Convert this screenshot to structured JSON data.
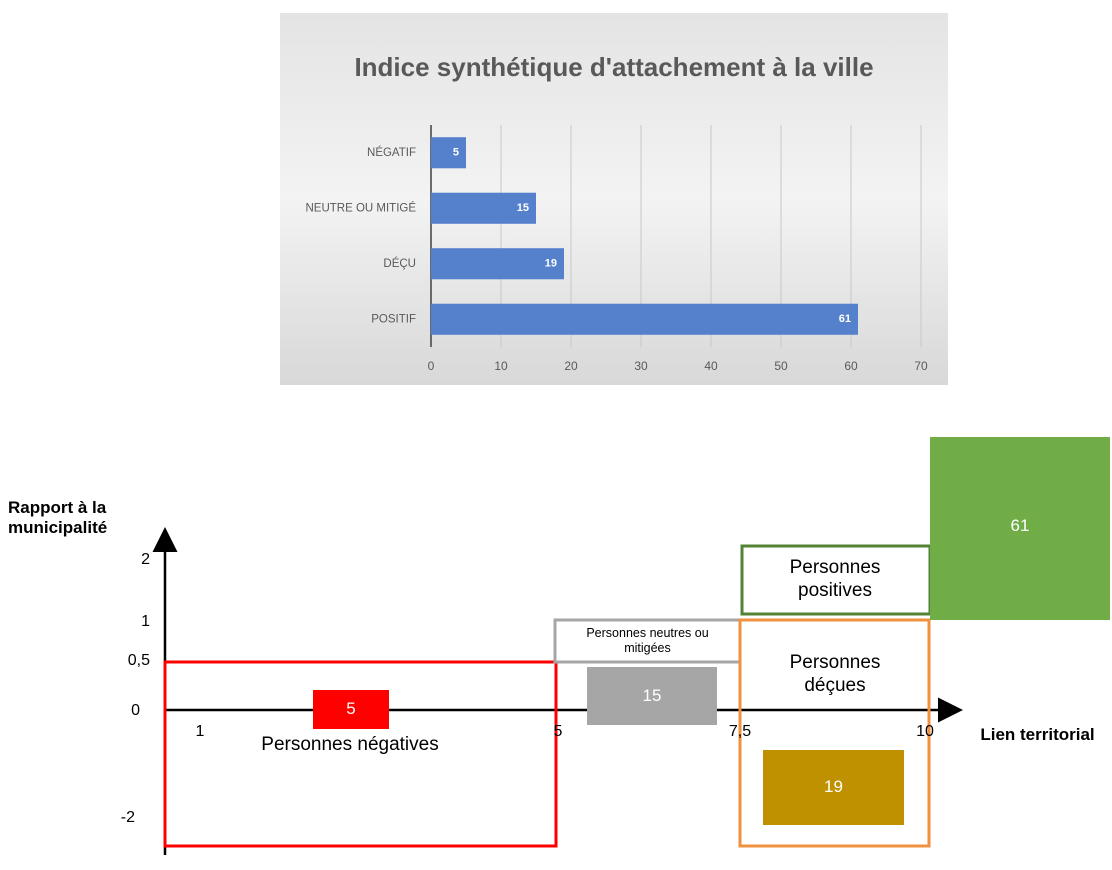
{
  "chart_data": {
    "type": "hbar",
    "title": "Indice synthétique d'attachement à la ville",
    "categories": [
      "NÉGATIF",
      "NEUTRE OU MITIGÉ",
      "DÉÇU",
      "POSITIF"
    ],
    "values": [
      5,
      15,
      19,
      61
    ],
    "color": "#5580cc",
    "xlim": [
      0,
      70
    ],
    "xticks": [
      0,
      10,
      20,
      30,
      40,
      50,
      60,
      70
    ],
    "grid": true
  },
  "diagram": {
    "y_axis_label": "Rapport à la municipalité",
    "x_axis_label": "Lien territorial",
    "y_ticks": [
      "2",
      "1",
      "0,5",
      "0",
      "-2"
    ],
    "x_ticks": [
      "1",
      "5",
      "7,5",
      "10"
    ],
    "groups": [
      {
        "label": "Personnes négatives",
        "count": 5
      },
      {
        "label": "Personnes neutres ou mitigées",
        "count": 15
      },
      {
        "label": "Personnes déçues",
        "count": 19
      },
      {
        "label": "Personnes positives",
        "count": 61
      }
    ]
  }
}
